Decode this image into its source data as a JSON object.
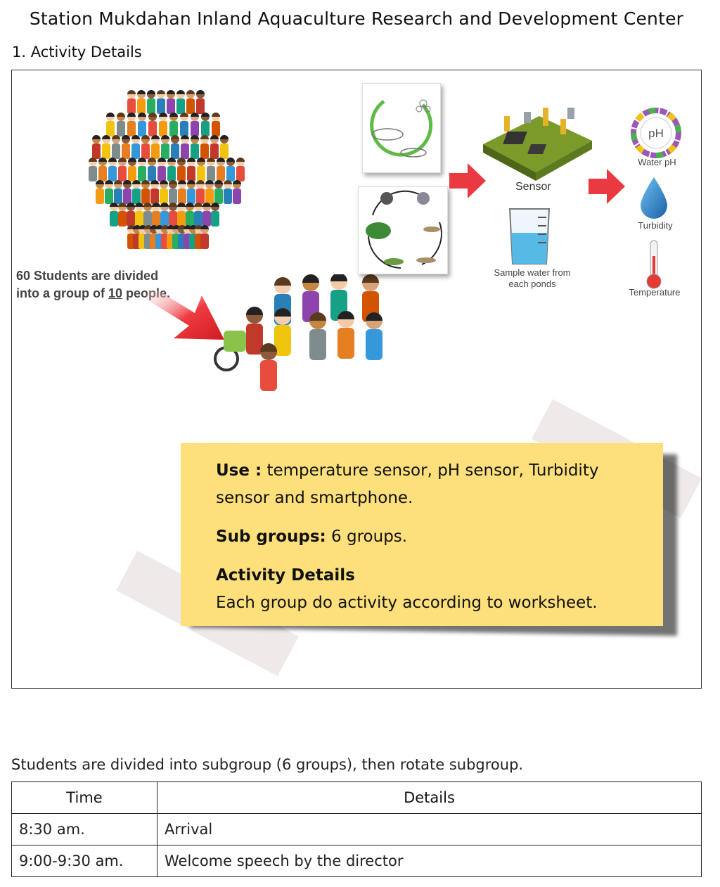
{
  "page": {
    "title": "Station Mukdahan Inland Aquaculture Research and Development Center",
    "section_heading": "1. Activity Details"
  },
  "illustration": {
    "crowd_caption_line1": "60 Students are divided",
    "crowd_caption_line2_prefix": "into a group of ",
    "crowd_caption_group_size": "10",
    "crowd_caption_line2_suffix": " people.",
    "sensor_label": "Sensor",
    "beaker_caption_line1": "Sample water from",
    "beaker_caption_line2": "each ponds",
    "ph_label": "Water pH",
    "ph_icon_text": "pH",
    "turbidity_label": "Turbidity",
    "temperature_label": "Temperature"
  },
  "note": {
    "use_label": "Use :",
    "use_text": " temperature sensor, pH sensor, Turbidity sensor and smartphone.",
    "subgroups_label": "Sub groups:",
    "subgroups_text": " 6 groups.",
    "activity_label": "Activity Details",
    "activity_text": "Each group do activity according to worksheet."
  },
  "schedule": {
    "intro": "Students are divided into subgroup (6 groups), then rotate subgroup.",
    "headers": [
      "Time",
      "Details"
    ],
    "rows": [
      {
        "time": "8:30 am.",
        "details": "Arrival"
      },
      {
        "time": "9:00-9:30 am.",
        "details": "Welcome speech by the director"
      }
    ]
  },
  "colors": {
    "note_yellow": "#fde07b",
    "arrow_red": "#e8242b",
    "water_blue": "#56b9e6"
  }
}
